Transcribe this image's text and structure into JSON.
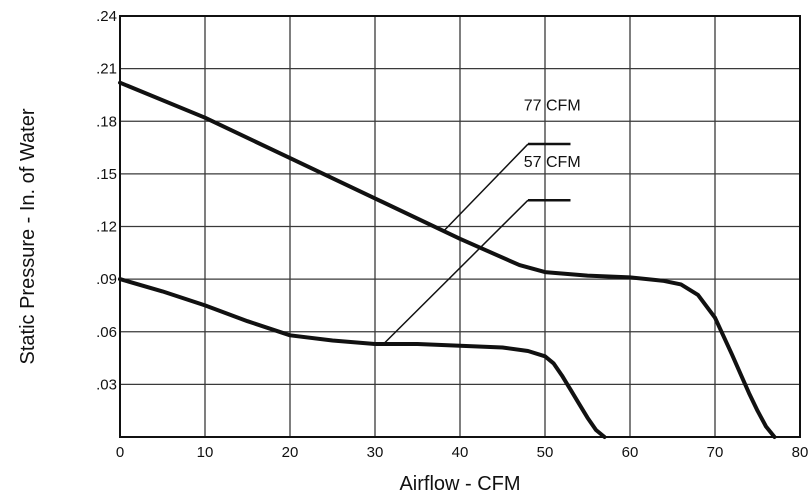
{
  "chart_data": {
    "type": "line",
    "title": "",
    "xlabel": "Airflow - CFM",
    "ylabel": "Static Pressure - In. of Water",
    "xlim": [
      0,
      80
    ],
    "ylim": [
      0,
      0.24
    ],
    "x_ticks": [
      {
        "value": 0,
        "label": "0"
      },
      {
        "value": 10,
        "label": "10"
      },
      {
        "value": 20,
        "label": "20"
      },
      {
        "value": 30,
        "label": "30"
      },
      {
        "value": 40,
        "label": "40"
      },
      {
        "value": 50,
        "label": "50"
      },
      {
        "value": 60,
        "label": "60"
      },
      {
        "value": 70,
        "label": "70"
      },
      {
        "value": 80,
        "label": "80"
      }
    ],
    "y_ticks": [
      {
        "value": 0.03,
        "label": ".03"
      },
      {
        "value": 0.06,
        "label": ".06"
      },
      {
        "value": 0.09,
        "label": ".09"
      },
      {
        "value": 0.12,
        "label": ".12"
      },
      {
        "value": 0.15,
        "label": ".15"
      },
      {
        "value": 0.18,
        "label": ".18"
      },
      {
        "value": 0.21,
        "label": ".21"
      },
      {
        "value": 0.24,
        "label": ".24"
      }
    ],
    "grid": true,
    "legend": "none",
    "line_color": "#111111",
    "grid_color": "#3a3a3a",
    "series": [
      {
        "name": "77 CFM",
        "x": [
          0,
          10,
          20,
          30,
          40,
          47,
          50,
          55,
          60,
          64,
          66,
          68,
          70,
          72,
          74,
          75,
          76,
          77
        ],
        "y": [
          0.202,
          0.182,
          0.159,
          0.136,
          0.113,
          0.098,
          0.094,
          0.092,
          0.091,
          0.089,
          0.087,
          0.081,
          0.068,
          0.047,
          0.025,
          0.015,
          0.006,
          0
        ]
      },
      {
        "name": "57 CFM",
        "x": [
          0,
          5,
          10,
          15,
          20,
          25,
          30,
          35,
          40,
          45,
          48,
          50,
          51,
          52,
          53,
          54,
          55,
          56,
          57
        ],
        "y": [
          0.09,
          0.083,
          0.075,
          0.066,
          0.058,
          0.055,
          0.053,
          0.053,
          0.052,
          0.051,
          0.049,
          0.046,
          0.042,
          0.035,
          0.027,
          0.019,
          0.011,
          0.004,
          0
        ]
      }
    ],
    "annotations": [
      {
        "text": "77 CFM",
        "series": "77 CFM",
        "label_x": 47.5,
        "label_y": 0.186,
        "shelf_x": [
          48,
          53
        ],
        "shelf_y": 0.167,
        "leader_to_x": 38,
        "leader_to_y": 0.117
      },
      {
        "text": "57 CFM",
        "series": "57 CFM",
        "label_x": 47.5,
        "label_y": 0.154,
        "shelf_x": [
          48,
          53
        ],
        "shelf_y": 0.135,
        "leader_to_x": 31,
        "leader_to_y": 0.053
      }
    ]
  }
}
